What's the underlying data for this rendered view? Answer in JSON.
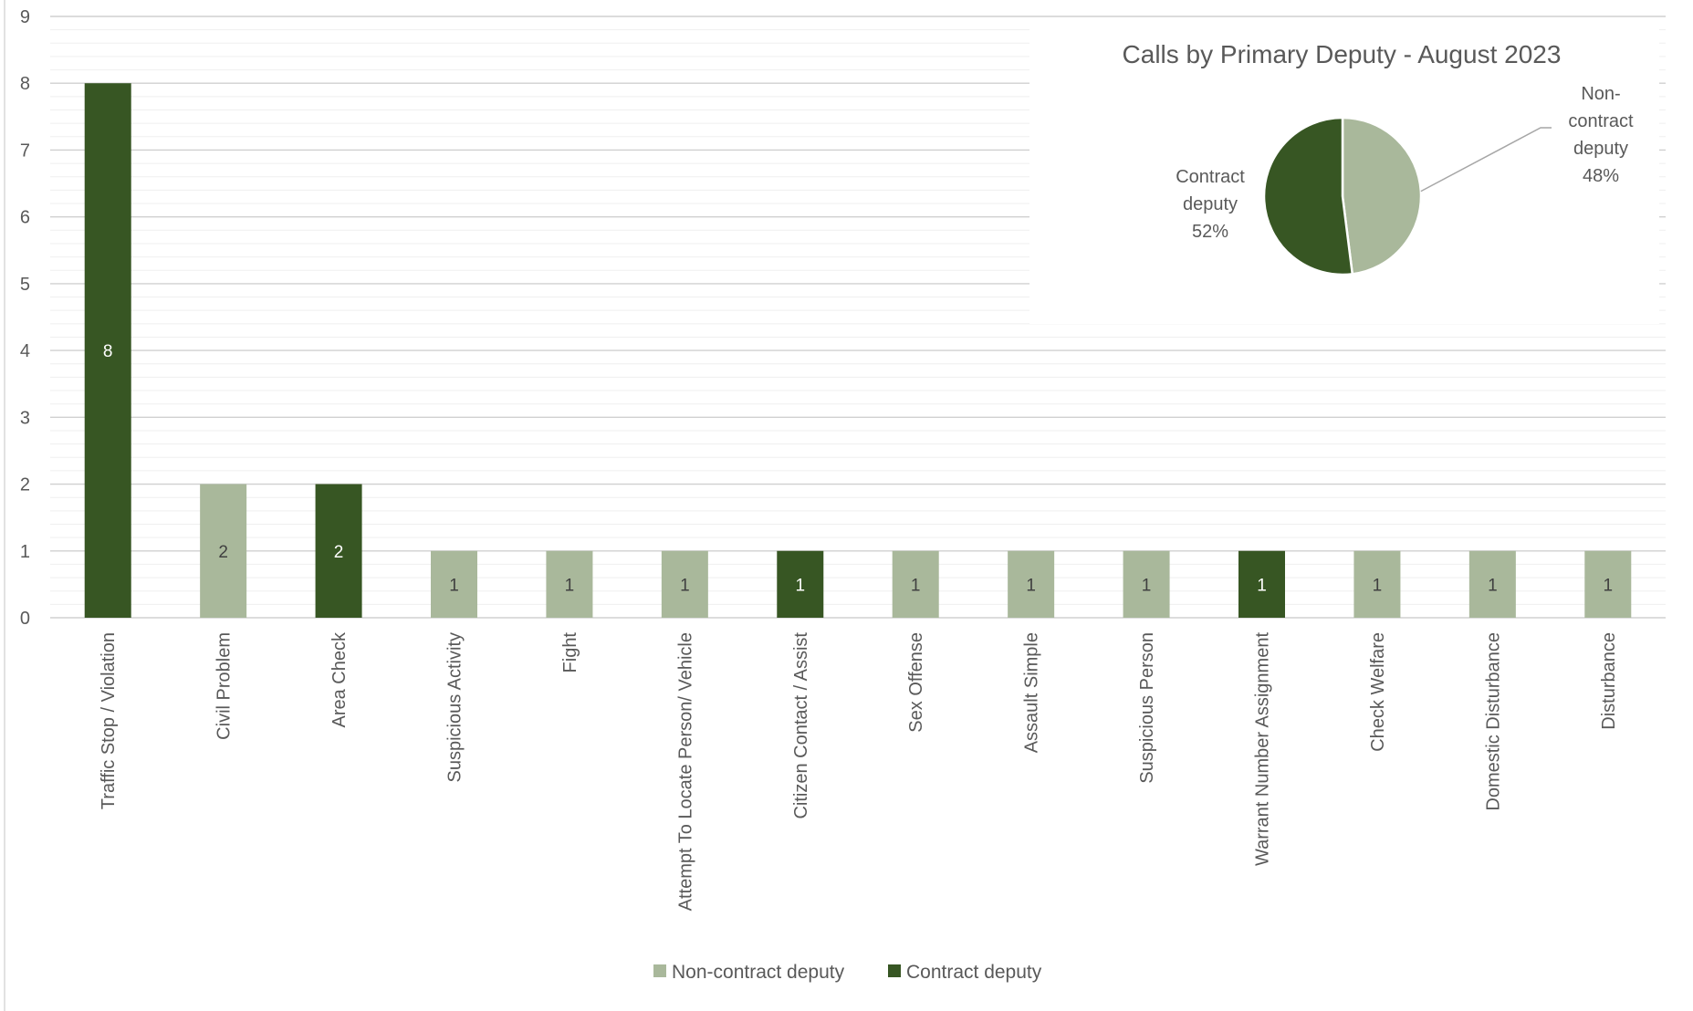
{
  "chart_data": [
    {
      "type": "bar",
      "categories": [
        "Traffic Stop / Violation",
        "Civil Problem",
        "Area Check",
        "Suspicious Activity",
        "Fight",
        "Attempt To Locate Person/ Vehicle",
        "Citizen Contact / Assist",
        "Sex Offense",
        "Assault Simple",
        "Suspicious Person",
        "Warrant Number Assignment",
        "Check Welfare",
        "Domestic Disturbance",
        "Disturbance"
      ],
      "values": [
        8,
        2,
        2,
        1,
        1,
        1,
        1,
        1,
        1,
        1,
        1,
        1,
        1,
        1
      ],
      "value_labels": [
        "8",
        "2",
        "2",
        "1",
        "1",
        "1",
        "1",
        "1",
        "1",
        "1",
        "1",
        "1",
        "1",
        "1"
      ],
      "series_of_bar": [
        "Contract deputy",
        "Non-contract deputy",
        "Contract deputy",
        "Non-contract deputy",
        "Non-contract deputy",
        "Non-contract deputy",
        "Contract deputy",
        "Non-contract deputy",
        "Non-contract deputy",
        "Non-contract deputy",
        "Contract deputy",
        "Non-contract deputy",
        "Non-contract deputy",
        "Non-contract deputy"
      ],
      "series": [
        {
          "name": "Non-contract deputy",
          "color": "#a9b89b"
        },
        {
          "name": "Contract deputy",
          "color": "#375623"
        }
      ],
      "yticks": [
        "0",
        "1",
        "2",
        "3",
        "4",
        "5",
        "6",
        "7",
        "8",
        "9"
      ],
      "ylim": [
        0,
        9
      ],
      "title": "",
      "xlabel": "",
      "ylabel": "",
      "grid": true,
      "legend_position": "bottom"
    },
    {
      "type": "pie",
      "title": "Calls by Primary Deputy - August 2023",
      "slices": [
        {
          "name": "Non-contract deputy",
          "label_lines": [
            "Non-",
            "contract",
            "deputy",
            "48%"
          ],
          "value": 48,
          "color": "#a9b89b"
        },
        {
          "name": "Contract deputy",
          "label_lines": [
            "Contract",
            "deputy",
            "52%"
          ],
          "value": 52,
          "color": "#375623"
        }
      ]
    }
  ]
}
